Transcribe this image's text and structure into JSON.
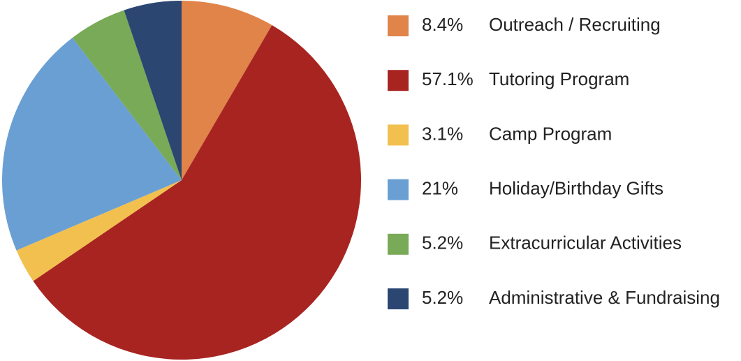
{
  "chart_data": {
    "type": "pie",
    "labels": [
      "Outreach / Recruiting",
      "Tutoring Program",
      "Camp Program",
      "Holiday/Birthday Gifts",
      "Extracurricular Activities",
      "Administrative & Fundraising"
    ],
    "values": [
      8.4,
      57.1,
      3.1,
      21,
      5.2,
      5.2
    ],
    "value_labels": [
      "8.4%",
      "57.1%",
      "3.1%",
      "21%",
      "5.2%",
      "5.2%"
    ],
    "colors": [
      "#e0844a",
      "#a82421",
      "#f2c04f",
      "#6a9fd4",
      "#79aa57",
      "#2c4672"
    ],
    "legend": "right"
  }
}
